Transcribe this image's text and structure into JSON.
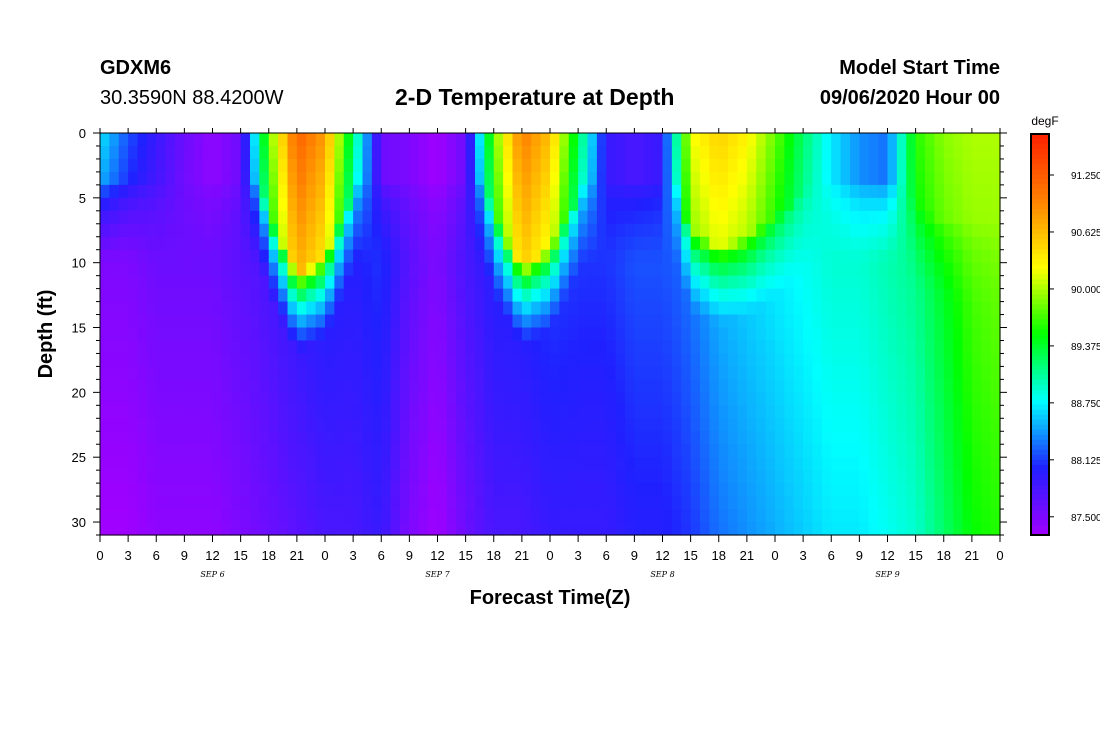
{
  "header": {
    "station": "GDXM6",
    "coords": "30.3590N 88.4200W",
    "title": "2-D Temperature at Depth",
    "model_start_label": "Model Start Time",
    "model_start_value": "09/06/2020 Hour 00"
  },
  "chart_data": {
    "type": "heatmap",
    "title": "2-D Temperature at Depth",
    "xlabel": "Forecast Time(Z)",
    "ylabel": "Depth (ft)",
    "x_range_hours": [
      0,
      96
    ],
    "y_range_ft": [
      0,
      31
    ],
    "y_inverted": true,
    "x_tick_labels": [
      "0",
      "3",
      "6",
      "9",
      "12",
      "15",
      "18",
      "21",
      "0",
      "3",
      "6",
      "9",
      "12",
      "15",
      "18",
      "21",
      "0",
      "3",
      "6",
      "9",
      "12",
      "15",
      "18",
      "21",
      "0",
      "3",
      "6",
      "9",
      "12",
      "15",
      "18",
      "21",
      "0"
    ],
    "day_labels": [
      "SEP 6",
      "SEP 7",
      "SEP 8",
      "SEP 9"
    ],
    "y_ticks": [
      0,
      5,
      10,
      15,
      20,
      25,
      30
    ],
    "colorbar": {
      "unit": "degF",
      "min": 87.3,
      "max": 91.7,
      "ticks": [
        "87.500",
        "88.125",
        "88.750",
        "89.375",
        "90.000",
        "90.625",
        "91.250"
      ],
      "colors": [
        "#a000ff",
        "#2020ff",
        "#00ffff",
        "#00ff00",
        "#ffff00",
        "#ff8000",
        "#ff2000"
      ]
    },
    "surface_temp_by_hour": [
      [
        0,
        88.7
      ],
      [
        3,
        88.2
      ],
      [
        6,
        87.9
      ],
      [
        9,
        87.6
      ],
      [
        12,
        87.4
      ],
      [
        15,
        87.6
      ],
      [
        18,
        89.8
      ],
      [
        21,
        91.2
      ],
      [
        24,
        90.8
      ],
      [
        27,
        89.2
      ],
      [
        30,
        87.6
      ],
      [
        33,
        87.5
      ],
      [
        36,
        87.3
      ],
      [
        39,
        87.6
      ],
      [
        42,
        89.8
      ],
      [
        45,
        91.0
      ],
      [
        48,
        90.6
      ],
      [
        51,
        89.3
      ],
      [
        54,
        87.9
      ],
      [
        57,
        87.8
      ],
      [
        60,
        87.9
      ],
      [
        63,
        90.2
      ],
      [
        66,
        90.5
      ],
      [
        69,
        90.3
      ],
      [
        72,
        89.8
      ],
      [
        75,
        89.2
      ],
      [
        78,
        88.7
      ],
      [
        81,
        88.4
      ],
      [
        84,
        88.3
      ],
      [
        87,
        89.6
      ],
      [
        90,
        89.9
      ],
      [
        93,
        90.0
      ],
      [
        96,
        90.0
      ]
    ],
    "bottom_temp_by_hour": [
      [
        0,
        87.3
      ],
      [
        3,
        87.3
      ],
      [
        6,
        87.4
      ],
      [
        9,
        87.4
      ],
      [
        12,
        87.4
      ],
      [
        15,
        87.5
      ],
      [
        18,
        87.6
      ],
      [
        21,
        87.7
      ],
      [
        24,
        87.8
      ],
      [
        27,
        87.8
      ],
      [
        30,
        87.9
      ],
      [
        33,
        87.5
      ],
      [
        36,
        87.3
      ],
      [
        39,
        87.6
      ],
      [
        42,
        87.8
      ],
      [
        45,
        87.8
      ],
      [
        48,
        87.9
      ],
      [
        51,
        87.9
      ],
      [
        54,
        87.9
      ],
      [
        57,
        88.0
      ],
      [
        60,
        88.0
      ],
      [
        63,
        88.1
      ],
      [
        66,
        88.3
      ],
      [
        69,
        88.4
      ],
      [
        72,
        88.5
      ],
      [
        75,
        88.6
      ],
      [
        78,
        88.7
      ],
      [
        81,
        88.7
      ],
      [
        84,
        88.8
      ],
      [
        87,
        88.9
      ],
      [
        90,
        89.2
      ],
      [
        93,
        89.5
      ],
      [
        96,
        89.6
      ]
    ]
  }
}
